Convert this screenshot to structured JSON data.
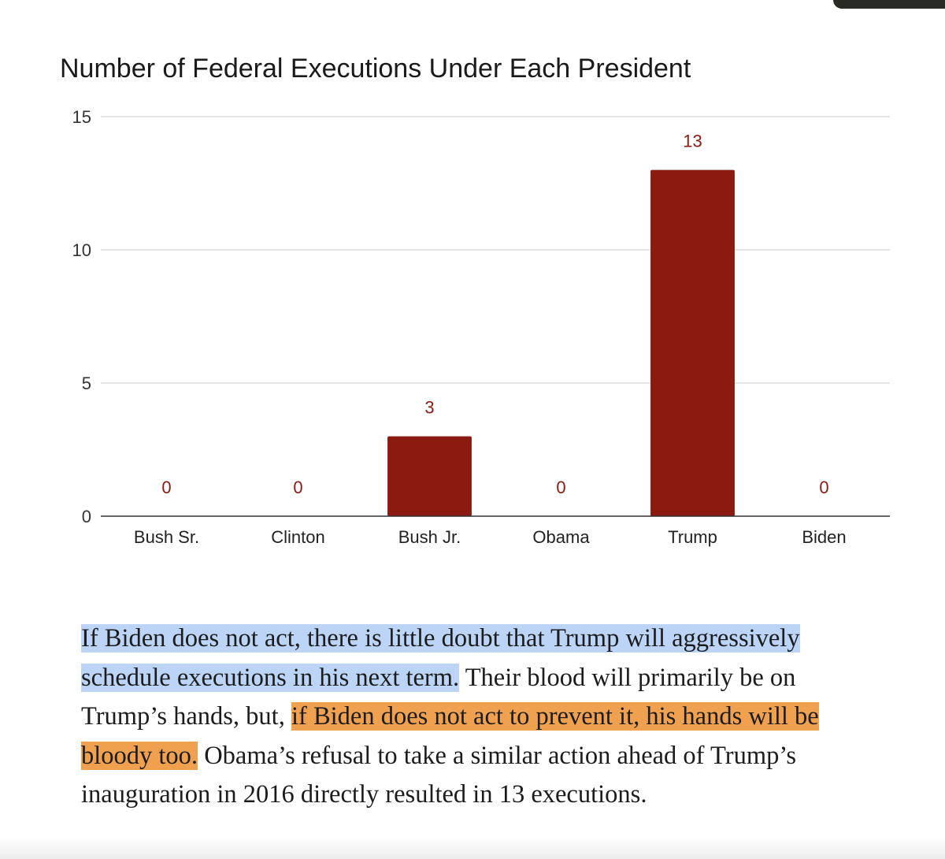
{
  "chart_data": {
    "type": "bar",
    "title": "Number of Federal Executions Under Each President",
    "categories": [
      "Bush Sr.",
      "Clinton",
      "Bush Jr.",
      "Obama",
      "Trump",
      "Biden"
    ],
    "values": [
      0,
      0,
      3,
      0,
      13,
      0
    ],
    "data_labels": [
      "0",
      "0",
      "3",
      "0",
      "13",
      "0"
    ],
    "ylim": [
      0,
      15
    ],
    "yticks": [
      "0",
      "5",
      "10",
      "15"
    ],
    "xlabel": "",
    "ylabel": "",
    "grid": true,
    "legend": "none",
    "bar_color": "#8b1a10",
    "label_color": "#8b1a10"
  },
  "article": {
    "highlight_blue": "If Biden does not act, there is little doubt that Trump will aggressively schedule executions in his next term.",
    "text_1": " Their blood will primarily be on Trump’s hands, but, ",
    "highlight_orange": "if Biden does not act to prevent it, his hands will be bloody too.",
    "text_2": " Obama’s refusal to take a similar action ahead of Trump’s inauguration in 2016 directly resulted in 13 executions.",
    "highlight_colors": {
      "blue": "#bcd5f7",
      "orange": "#f0a150"
    }
  }
}
